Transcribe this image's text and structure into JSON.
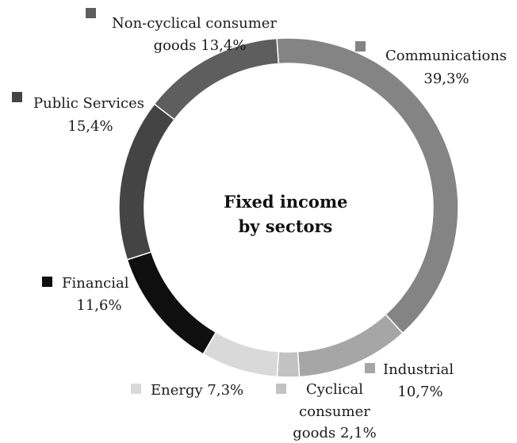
{
  "chart_data": {
    "type": "pie",
    "style": "donut",
    "title_lines": [
      "Fixed income",
      "by sectors"
    ],
    "slices": [
      {
        "label": "Communications",
        "value_text": "39,3%",
        "value": 39.3,
        "color": "#848484",
        "label_lines": [
          "Communications",
          "39,3%"
        ]
      },
      {
        "label": "Industrial",
        "value_text": "10,7%",
        "value": 10.7,
        "color": "#a6a6a6",
        "label_lines": [
          "Industrial",
          "10,7%"
        ]
      },
      {
        "label": "Cyclical consumer goods",
        "value_text": "2,1%",
        "value": 2.1,
        "color": "#c2c2c2",
        "label_lines": [
          "Cyclical",
          "consumer",
          "goods 2,1%"
        ]
      },
      {
        "label": "Energy",
        "value_text": "7,3%",
        "value": 7.3,
        "color": "#d9d9d9",
        "label_lines": [
          "Energy 7,3%"
        ]
      },
      {
        "label": "Financial",
        "value_text": "11,6%",
        "value": 11.6,
        "color": "#0f0f0f",
        "label_lines": [
          "Financial",
          "11,6%"
        ]
      },
      {
        "label": "Public Services",
        "value_text": "15,4%",
        "value": 15.4,
        "color": "#444444",
        "label_lines": [
          "Public Services",
          "15,4%"
        ]
      },
      {
        "label": "Non-cyclical consumer goods",
        "value_text": "13,4%",
        "value": 13.4,
        "color": "#5e5e5e",
        "label_lines": [
          "Non-cyclical consumer",
          "goods 13,4%"
        ]
      }
    ],
    "legend": "labels beside slices with square markers"
  }
}
